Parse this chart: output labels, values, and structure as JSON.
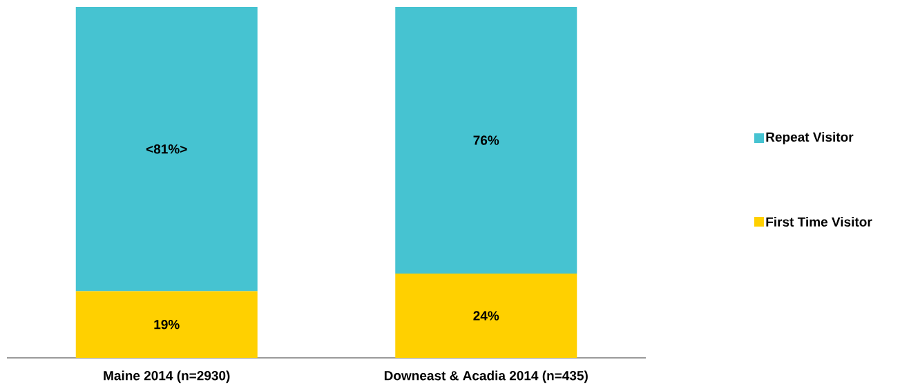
{
  "chart_data": {
    "type": "bar",
    "stacked": true,
    "categories": [
      "Maine 2014 (n=2930)",
      "Downeast & Acadia 2014 (n=435)"
    ],
    "legend": "right",
    "series": [
      {
        "name": "First Time Visitor",
        "color": "#ffd000",
        "values": [
          19,
          24
        ],
        "value_labels": [
          "19%",
          "24%"
        ]
      },
      {
        "name": "Repeat Visitor",
        "color": "#46c3d1",
        "values": [
          81,
          76
        ],
        "value_labels": [
          "<81%>",
          "76%"
        ]
      }
    ]
  }
}
